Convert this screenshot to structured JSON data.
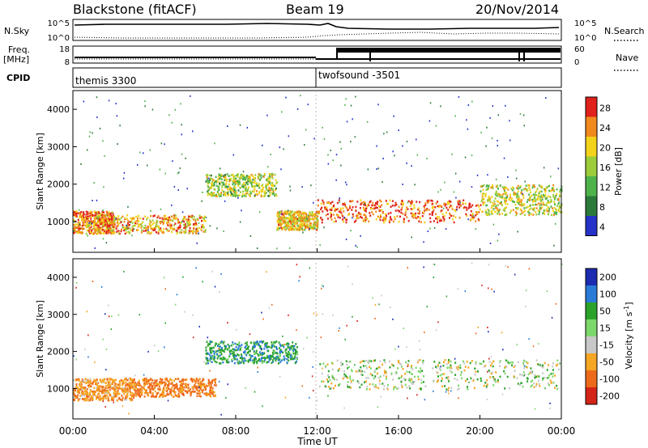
{
  "header": {
    "title": "Blackstone (fitACF)",
    "beam": "Beam 19",
    "date": "20/Nov/2014"
  },
  "left_labels": {
    "nsky": "N.Sky",
    "freq": "Freq.",
    "freq_unit": "[MHz]",
    "cpid": "CPID"
  },
  "right_labels": {
    "nsearch": "N.Search",
    "nave": "Nave"
  },
  "ticks": {
    "nsky_top": "10^5",
    "nsky_bottom": "10^0",
    "nsearch_top": "10^5",
    "nsearch_bottom": "10^0",
    "freq_top": "18",
    "freq_bottom": "8",
    "nave_top": "60",
    "nave_bottom": "0"
  },
  "cpid_segments": [
    {
      "label": "themis 3300",
      "start_hour": 0
    },
    {
      "label": "twofsound -3501",
      "start_hour": 12
    }
  ],
  "time_axis": {
    "label": "Time UT",
    "ticks": [
      "00:00",
      "04:00",
      "08:00",
      "12:00",
      "16:00",
      "20:00",
      "00:00"
    ],
    "tick_hours": [
      0,
      4,
      8,
      12,
      16,
      20,
      24
    ]
  },
  "range_axis": {
    "label": "Slant Range [km]",
    "ticks": [
      "1000",
      "2000",
      "3000",
      "4000"
    ],
    "tick_values": [
      1000,
      2000,
      3000,
      4000
    ],
    "range": [
      180,
      4500
    ]
  },
  "power_scale": {
    "label": "Power [dB]",
    "ticks": [
      "4",
      "8",
      "12",
      "16",
      "20",
      "24",
      "28"
    ],
    "colors": [
      "#2632c8",
      "#2c7a3a",
      "#4fb34c",
      "#9ccc3a",
      "#f2d21a",
      "#f08a1c",
      "#e0211c"
    ]
  },
  "velocity_scale": {
    "label": "Velocity [m s^-1]",
    "ticks": [
      "200",
      "100",
      "50",
      "15",
      "-15",
      "-50",
      "-100",
      "-200"
    ],
    "colors": [
      "#1c2bb0",
      "#2a7ad8",
      "#2ba32b",
      "#7dd86b",
      "#c8c8c8",
      "#f5a623",
      "#ee6a1b",
      "#d42418"
    ]
  },
  "chart_data": [
    {
      "type": "heatmap",
      "name": "Power",
      "x_label": "Time UT",
      "y_label": "Slant Range [km]",
      "x_range_hours": [
        0,
        24
      ],
      "y_range_km": [
        180,
        4500
      ],
      "colorbar_label": "Power [dB]",
      "colorbar_ticks": [
        4,
        8,
        12,
        16,
        20,
        24,
        28
      ],
      "scatter_bands": [
        {
          "t_start": 0.0,
          "t_end": 2.0,
          "range_start_km": 700,
          "range_end_km": 1300,
          "power_db": 24
        },
        {
          "t_start": 1.0,
          "t_end": 6.5,
          "range_start_km": 700,
          "range_end_km": 1200,
          "power_db": 22
        },
        {
          "t_start": 6.5,
          "t_end": 10.0,
          "range_start_km": 1700,
          "range_end_km": 2300,
          "power_db": 16
        },
        {
          "t_start": 10.0,
          "t_end": 12.0,
          "range_start_km": 800,
          "range_end_km": 1300,
          "power_db": 20
        },
        {
          "t_start": 12.0,
          "t_end": 20.0,
          "range_start_km": 1000,
          "range_end_km": 1600,
          "power_db": 26
        },
        {
          "t_start": 20.0,
          "t_end": 24.0,
          "range_start_km": 1200,
          "range_end_km": 2000,
          "power_db": 18
        }
      ]
    },
    {
      "type": "heatmap",
      "name": "Velocity",
      "x_label": "Time UT",
      "y_label": "Slant Range [km]",
      "x_range_hours": [
        0,
        24
      ],
      "y_range_km": [
        180,
        4500
      ],
      "colorbar_label": "Velocity [m s^-1]",
      "colorbar_ticks": [
        200,
        100,
        50,
        15,
        -15,
        -50,
        -100,
        -200
      ],
      "scatter_bands": [
        {
          "t_start": 0.0,
          "t_end": 3.0,
          "range_start_km": 700,
          "range_end_km": 1300,
          "velocity_ms": -40
        },
        {
          "t_start": 3.0,
          "t_end": 7.0,
          "range_start_km": 800,
          "range_end_km": 1300,
          "velocity_ms": -60
        },
        {
          "t_start": 6.5,
          "t_end": 11.0,
          "range_start_km": 1700,
          "range_end_km": 2300,
          "velocity_ms": 40
        },
        {
          "t_start": 12.0,
          "t_end": 24.0,
          "range_start_km": 1000,
          "range_end_km": 1800,
          "velocity_ms": 0
        }
      ]
    }
  ]
}
